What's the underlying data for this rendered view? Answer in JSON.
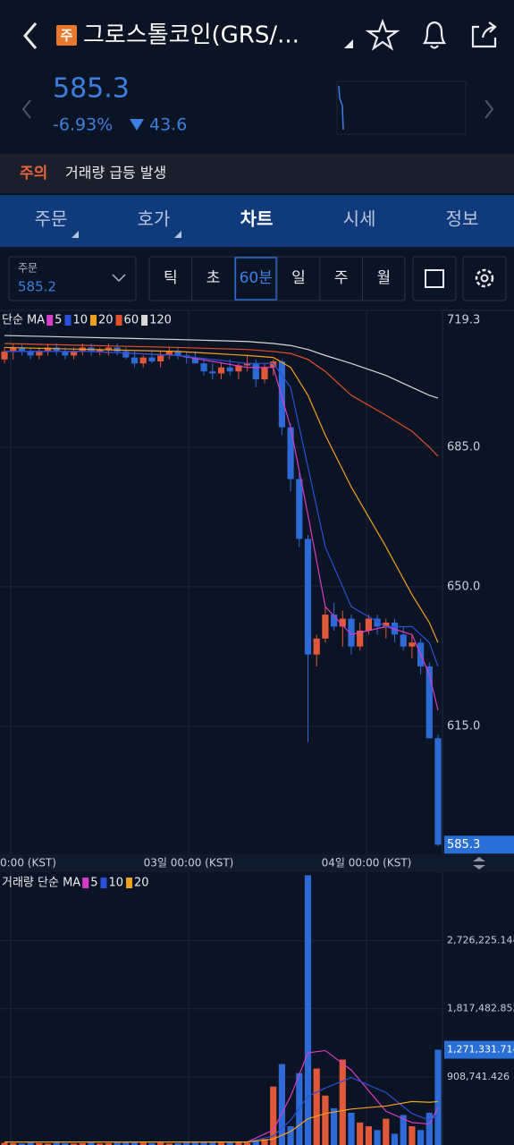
{
  "header": {
    "badge": "주",
    "title": "그로스톨코인(GRS/..."
  },
  "price": {
    "current": "585.3",
    "change_pct": "-6.93%",
    "change": "43.6"
  },
  "notice": {
    "label": "주의",
    "text": "거래량 급등 발생"
  },
  "tabs": {
    "items": [
      "주문",
      "호가",
      "차트",
      "시세",
      "정보"
    ],
    "active": 2
  },
  "toolbar": {
    "order_label": "주문",
    "order_value": "585.2",
    "intervals": [
      "틱",
      "초",
      "60분",
      "일",
      "주",
      "월"
    ],
    "active": 2
  },
  "price_chart": {
    "legend_label": "단순 MA",
    "ylim": [
      582.9,
      719.3
    ],
    "yticks": [
      719.3,
      {
        "value": 685,
        "label": "685.0"
      },
      {
        "value": 650,
        "label": "650.0"
      },
      {
        "value": 615,
        "label": "615.0"
      }
    ],
    "last_price": 585.3,
    "up_color": "#e0583a",
    "down_color": "#2d6ad6",
    "candles": {
      "open": [
        707,
        709,
        710,
        709,
        708,
        709,
        710,
        709,
        708,
        709,
        710,
        709,
        709.5,
        710,
        709,
        707.5,
        706,
        707.5,
        706.5,
        708,
        709,
        708,
        707.5,
        706,
        704,
        703.5,
        705,
        704,
        705.5,
        706,
        702,
        705,
        706.5,
        690,
        677,
        662,
        633,
        637,
        643,
        640,
        642,
        635,
        639,
        642,
        640,
        641,
        638,
        635,
        636,
        630,
        612
      ],
      "high": [
        710,
        711,
        711,
        710,
        710,
        711,
        711,
        710,
        710,
        711,
        711,
        710,
        711,
        711,
        710,
        709,
        708,
        709,
        709,
        710,
        710,
        709,
        709,
        707,
        706,
        706,
        707,
        706,
        708,
        707,
        706,
        707,
        707,
        691,
        679,
        663,
        638,
        645,
        646,
        644,
        643,
        641,
        643,
        643,
        642,
        642,
        640,
        638,
        637,
        631,
        613
      ],
      "low": [
        706,
        707,
        708,
        707,
        707,
        708,
        708,
        707,
        707,
        708,
        708,
        708,
        708,
        708,
        707,
        705,
        705,
        706,
        705,
        707,
        707,
        706,
        706,
        703,
        702,
        702,
        703,
        702,
        704,
        700,
        701,
        703,
        688,
        674,
        660,
        611,
        630,
        636,
        639,
        635,
        633,
        634,
        638,
        638,
        637,
        636,
        634,
        632,
        628,
        612,
        585
      ],
      "close": [
        709,
        710,
        709,
        708,
        709,
        710,
        709,
        708,
        709,
        710,
        709,
        709.5,
        710,
        709,
        707.5,
        706,
        707.5,
        706.5,
        708,
        709,
        708,
        707.5,
        706,
        704,
        703.5,
        705,
        704,
        705.5,
        706,
        702,
        705,
        706.5,
        690,
        677,
        662,
        633,
        637,
        643,
        640,
        642,
        635,
        639,
        642,
        640,
        641,
        638,
        635,
        636,
        630,
        612,
        585.3
      ]
    },
    "ma_x": [
      0,
      10,
      20,
      28,
      31,
      33,
      35,
      37,
      40,
      44,
      47,
      49,
      50
    ],
    "ma_lines": [
      {
        "name": "5",
        "color": "#d63cc8",
        "values": [
          709,
          709,
          708,
          705,
          705,
          690,
          668,
          645,
          638,
          640,
          638,
          628,
          619
        ]
      },
      {
        "name": "10",
        "color": "#2a4fd8",
        "values": [
          709,
          709,
          708,
          706,
          706,
          700,
          680,
          660,
          645,
          640,
          640,
          636,
          630
        ]
      },
      {
        "name": "20",
        "color": "#f0a020",
        "values": [
          710,
          709.5,
          709,
          708,
          707.5,
          705,
          698,
          688,
          675,
          660,
          648,
          641,
          636
        ]
      },
      {
        "name": "60",
        "color": "#e0502a",
        "values": [
          711,
          710.5,
          710,
          709.5,
          709,
          708.5,
          707,
          704,
          698,
          693,
          689,
          685,
          682.7
        ]
      },
      {
        "name": "120",
        "color": "#d8d8d8",
        "values": [
          713,
          712.5,
          712,
          711.5,
          711,
          710.5,
          709.5,
          708,
          706,
          703,
          700,
          698,
          697.3
        ]
      }
    ],
    "time_labels": [
      "0:00 (KST)",
      "03일 00:00 (KST)",
      "04일 00:00 (KST)"
    ]
  },
  "volume_chart": {
    "legend_label": "거래량 단순 MA",
    "ylim": [
      0,
      3605000
    ],
    "yticks": [
      {
        "value": 908741.426,
        "label": "908,741.426"
      },
      {
        "value": 1817482.852,
        "label": "1,817,482.852"
      },
      {
        "value": 2726225.144,
        "label": "2,726,225.144"
      }
    ],
    "values": [
      30000,
      25000,
      20000,
      30000,
      25000,
      20000,
      30000,
      25000,
      20000,
      25000,
      30000,
      20000,
      25000,
      30000,
      40000,
      35000,
      30000,
      25000,
      30000,
      20000,
      25000,
      30000,
      35000,
      40000,
      45000,
      30000,
      35000,
      40000,
      30000,
      60000,
      80000,
      780000,
      1080000,
      250000,
      960000,
      3600000,
      1020000,
      660000,
      490000,
      1140000,
      430000,
      300000,
      250000,
      200000,
      350000,
      150000,
      400000,
      250000,
      200000,
      430000,
      1271331.714
    ],
    "value_labels_last": "1,271,331.714",
    "ma_lines": [
      {
        "name": "5",
        "color": "#d63cc8",
        "values": [
          40000,
          40000,
          40000,
          40000,
          200000,
          650000,
          1230000,
          1260000,
          1000000,
          450000,
          300000,
          280000,
          500000
        ]
      },
      {
        "name": "10",
        "color": "#2a4fd8",
        "values": [
          40000,
          40000,
          40000,
          40000,
          120000,
          330000,
          650000,
          760000,
          900000,
          700000,
          420000,
          330000,
          400000
        ]
      },
      {
        "name": "20",
        "color": "#f0a020",
        "values": [
          40000,
          40000,
          40000,
          40000,
          80000,
          180000,
          350000,
          420000,
          480000,
          520000,
          580000,
          570000,
          580000
        ]
      }
    ]
  }
}
